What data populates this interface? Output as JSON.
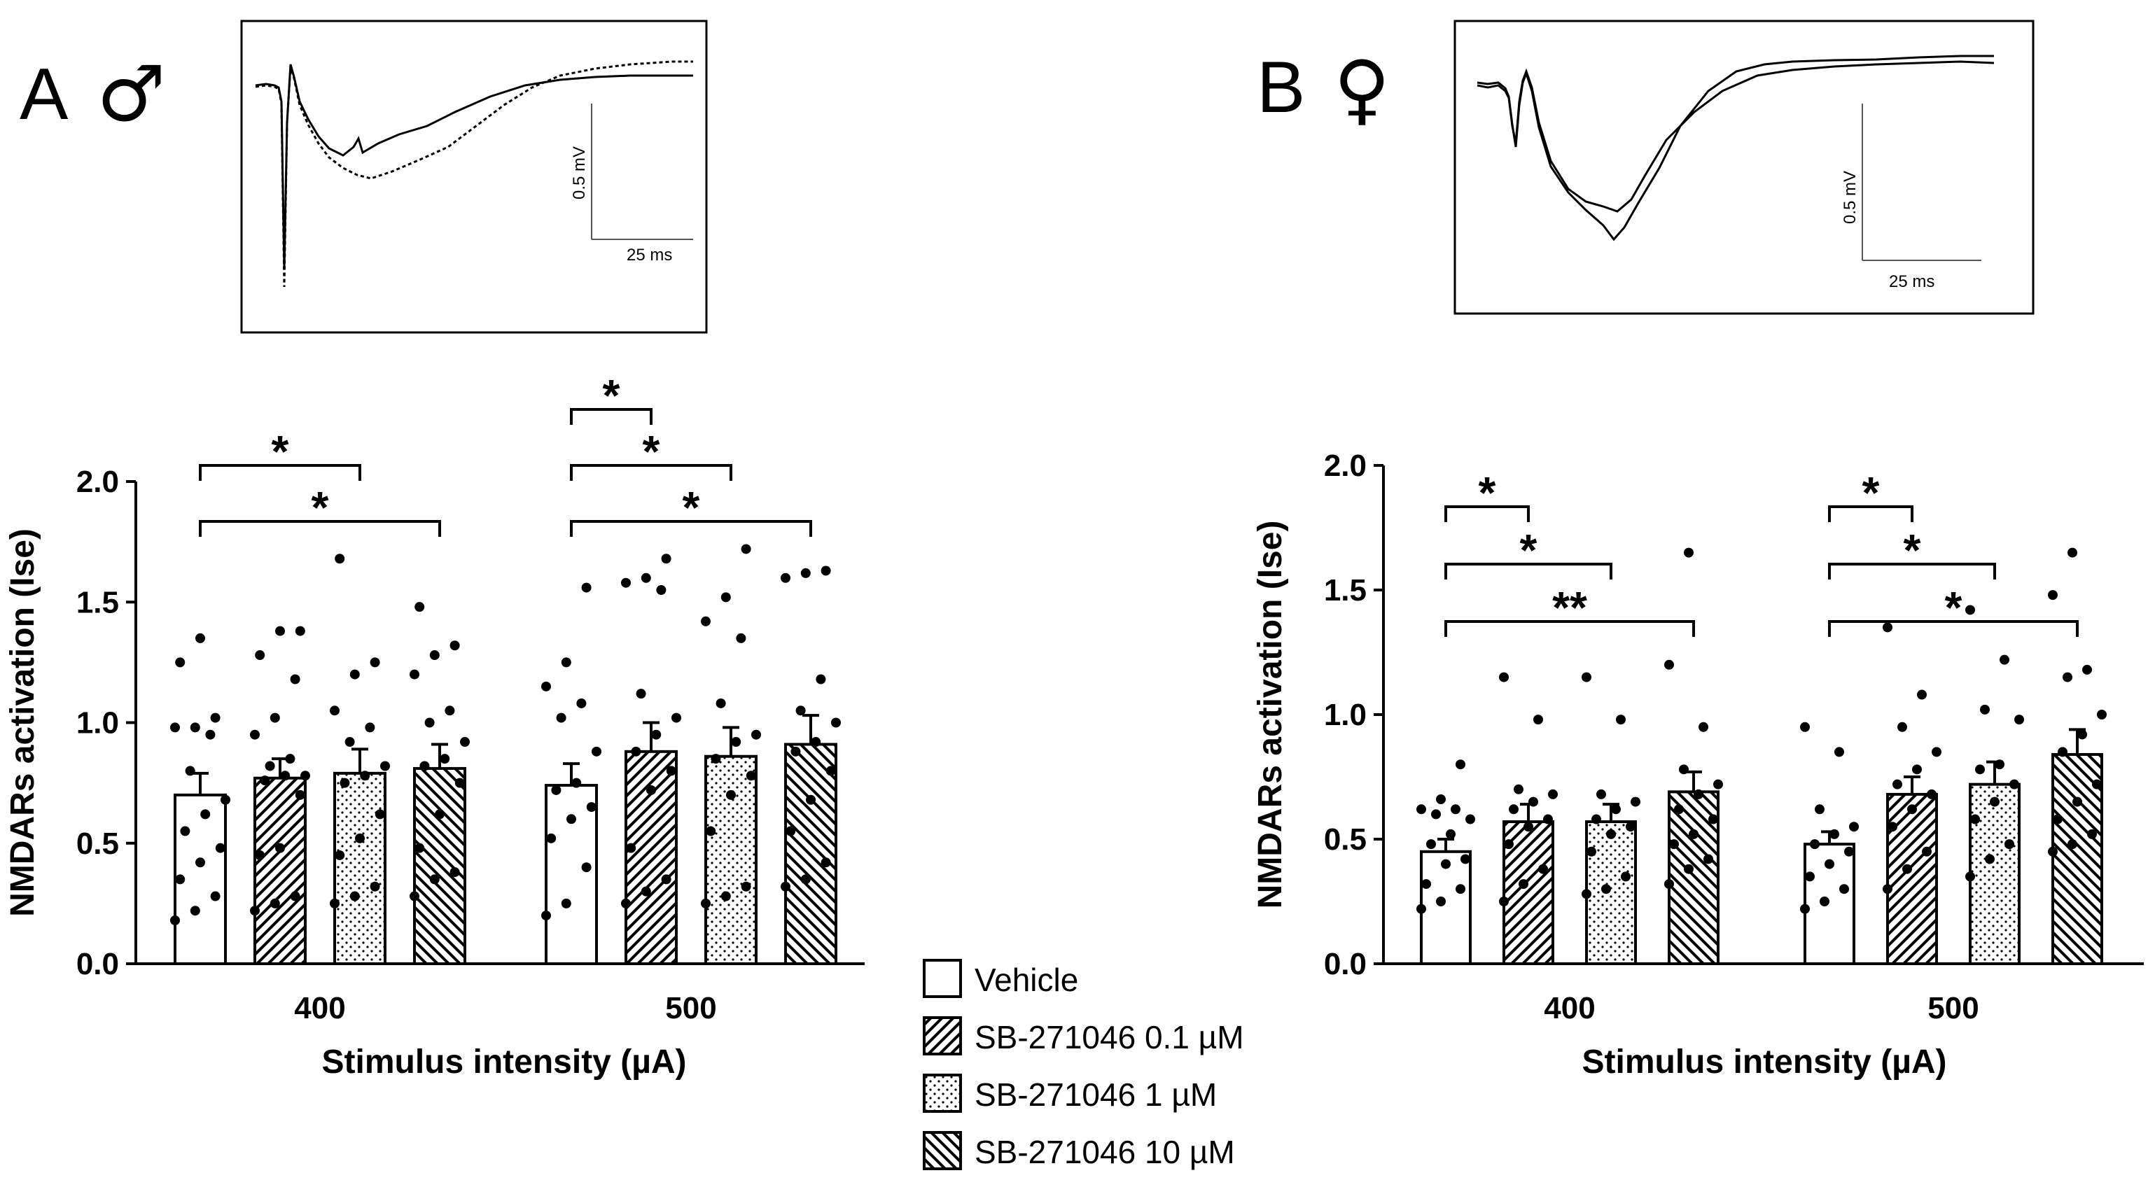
{
  "panels": [
    {
      "letter": "A",
      "sex_symbol": "♂",
      "inset": {
        "scale_v": "0.5 mV",
        "scale_t": "25 ms"
      }
    },
    {
      "letter": "B",
      "sex_symbol": "♀",
      "inset": {
        "scale_v": "0.5 mV",
        "scale_t": "25 ms"
      }
    }
  ],
  "legend": [
    {
      "label": "Vehicle",
      "pattern": "vehicle"
    },
    {
      "label": "SB-271046 0.1 µM",
      "pattern": "hatch"
    },
    {
      "label": "SB-271046 1 µM",
      "pattern": "dots"
    },
    {
      "label": "SB-271046 10 µM",
      "pattern": "backhatch"
    }
  ],
  "chart_data": [
    {
      "type": "bar",
      "panel": "A",
      "ylabel": "NMDARs activation (Ise)",
      "xlabel": "Stimulus intensity (µA)",
      "ylim": [
        0,
        2.0
      ],
      "yticks": [
        "0.0",
        "0.5",
        "1.0",
        "1.5",
        "2.0"
      ],
      "groups": [
        {
          "label": "400",
          "bars": [
            {
              "series": "Vehicle",
              "mean": 0.7,
              "sem": 0.09,
              "points": [
                0.18,
                0.22,
                0.28,
                0.35,
                0.42,
                0.48,
                0.55,
                0.62,
                0.68,
                0.8,
                0.95,
                0.98,
                0.98,
                1.02,
                1.25,
                1.35
              ]
            },
            {
              "series": "SB-271046 0.1 µM",
              "mean": 0.77,
              "sem": 0.08,
              "points": [
                0.22,
                0.25,
                0.28,
                0.45,
                0.48,
                0.7,
                0.76,
                0.78,
                0.78,
                0.82,
                0.85,
                0.95,
                1.02,
                1.18,
                1.28,
                1.38,
                1.38
              ]
            },
            {
              "series": "SB-271046 1 µM",
              "mean": 0.79,
              "sem": 0.1,
              "points": [
                0.25,
                0.28,
                0.32,
                0.45,
                0.52,
                0.62,
                0.75,
                0.78,
                0.82,
                0.92,
                0.98,
                1.05,
                1.2,
                1.25,
                1.68
              ]
            },
            {
              "series": "SB-271046 10 µM",
              "mean": 0.81,
              "sem": 0.1,
              "points": [
                0.28,
                0.35,
                0.38,
                0.48,
                0.62,
                0.75,
                0.82,
                0.85,
                0.92,
                1.0,
                1.05,
                1.2,
                1.28,
                1.32,
                1.48
              ]
            }
          ],
          "comparisons": [
            {
              "from": 0,
              "to": 2,
              "label": "*"
            },
            {
              "from": 0,
              "to": 3,
              "label": "*"
            }
          ]
        },
        {
          "label": "500",
          "bars": [
            {
              "series": "Vehicle",
              "mean": 0.74,
              "sem": 0.09,
              "points": [
                0.2,
                0.25,
                0.4,
                0.52,
                0.6,
                0.65,
                0.72,
                0.75,
                0.88,
                1.02,
                1.08,
                1.15,
                1.25,
                1.56
              ]
            },
            {
              "series": "SB-271046 0.1 µM",
              "mean": 0.88,
              "sem": 0.12,
              "points": [
                0.25,
                0.3,
                0.35,
                0.48,
                0.72,
                0.8,
                0.88,
                0.95,
                1.02,
                1.12,
                1.55,
                1.58,
                1.6,
                1.68
              ]
            },
            {
              "series": "SB-271046 1 µM",
              "mean": 0.86,
              "sem": 0.12,
              "points": [
                0.25,
                0.28,
                0.32,
                0.55,
                0.7,
                0.78,
                0.85,
                0.92,
                0.95,
                1.08,
                1.35,
                1.42,
                1.52,
                1.72
              ]
            },
            {
              "series": "SB-271046 10 µM",
              "mean": 0.91,
              "sem": 0.12,
              "points": [
                0.32,
                0.35,
                0.42,
                0.55,
                0.68,
                0.8,
                0.88,
                0.92,
                1.0,
                1.05,
                1.18,
                1.6,
                1.62,
                1.63
              ]
            }
          ],
          "comparisons": [
            {
              "from": 0,
              "to": 1,
              "label": "*"
            },
            {
              "from": 0,
              "to": 2,
              "label": "*"
            },
            {
              "from": 0,
              "to": 3,
              "label": "*"
            }
          ]
        }
      ]
    },
    {
      "type": "bar",
      "panel": "B",
      "ylabel": "NMDARs activation (Ise)",
      "xlabel": "Stimulus intensity (µA)",
      "ylim": [
        0,
        2.0
      ],
      "yticks": [
        "0.0",
        "0.5",
        "1.0",
        "1.5",
        "2.0"
      ],
      "groups": [
        {
          "label": "400",
          "bars": [
            {
              "series": "Vehicle",
              "mean": 0.45,
              "sem": 0.05,
              "points": [
                0.22,
                0.25,
                0.3,
                0.32,
                0.4,
                0.42,
                0.48,
                0.52,
                0.58,
                0.6,
                0.62,
                0.62,
                0.66,
                0.8
              ]
            },
            {
              "series": "SB-271046 0.1 µM",
              "mean": 0.57,
              "sem": 0.07,
              "points": [
                0.25,
                0.32,
                0.38,
                0.48,
                0.55,
                0.58,
                0.62,
                0.65,
                0.68,
                0.7,
                0.98,
                1.15
              ]
            },
            {
              "series": "SB-271046 1 µM",
              "mean": 0.57,
              "sem": 0.07,
              "points": [
                0.28,
                0.3,
                0.35,
                0.45,
                0.52,
                0.55,
                0.58,
                0.62,
                0.65,
                0.68,
                0.98,
                1.15
              ]
            },
            {
              "series": "SB-271046 10 µM",
              "mean": 0.69,
              "sem": 0.08,
              "points": [
                0.32,
                0.38,
                0.42,
                0.48,
                0.52,
                0.58,
                0.62,
                0.68,
                0.72,
                0.78,
                0.95,
                1.2,
                1.65
              ]
            }
          ],
          "comparisons": [
            {
              "from": 0,
              "to": 1,
              "label": "*"
            },
            {
              "from": 0,
              "to": 2,
              "label": "*"
            },
            {
              "from": 0,
              "to": 3,
              "label": "**"
            }
          ]
        },
        {
          "label": "500",
          "bars": [
            {
              "series": "Vehicle",
              "mean": 0.48,
              "sem": 0.05,
              "points": [
                0.22,
                0.25,
                0.3,
                0.35,
                0.4,
                0.45,
                0.48,
                0.52,
                0.55,
                0.62,
                0.85,
                0.95
              ]
            },
            {
              "series": "SB-271046 0.1 µM",
              "mean": 0.68,
              "sem": 0.07,
              "points": [
                0.3,
                0.38,
                0.45,
                0.55,
                0.62,
                0.68,
                0.72,
                0.78,
                0.85,
                0.95,
                1.08,
                1.35
              ]
            },
            {
              "series": "SB-271046 1 µM",
              "mean": 0.72,
              "sem": 0.09,
              "points": [
                0.35,
                0.42,
                0.48,
                0.58,
                0.65,
                0.72,
                0.78,
                0.8,
                0.98,
                1.02,
                1.22,
                1.42
              ]
            },
            {
              "series": "SB-271046 10 µM",
              "mean": 0.84,
              "sem": 0.1,
              "points": [
                0.45,
                0.48,
                0.52,
                0.58,
                0.65,
                0.72,
                0.85,
                0.92,
                1.0,
                1.15,
                1.18,
                1.48,
                1.65
              ]
            }
          ],
          "comparisons": [
            {
              "from": 0,
              "to": 1,
              "label": "*"
            },
            {
              "from": 0,
              "to": 2,
              "label": "*"
            },
            {
              "from": 0,
              "to": 3,
              "label": "*"
            }
          ]
        }
      ]
    }
  ]
}
